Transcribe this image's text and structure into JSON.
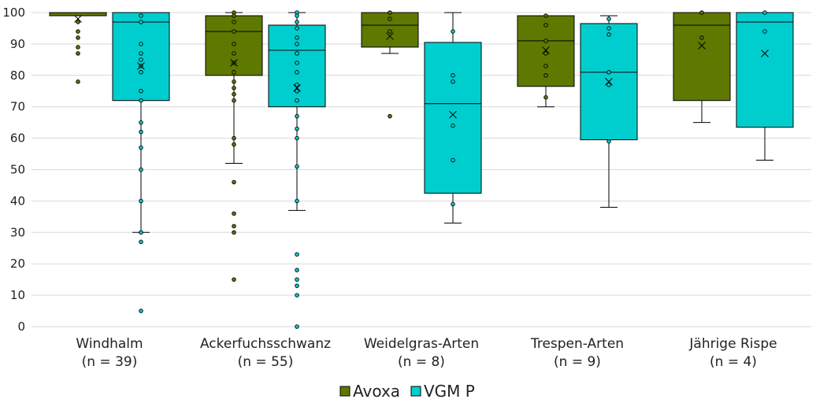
{
  "chart_data": {
    "type": "box",
    "title": "",
    "xlabel": "",
    "ylabel": "",
    "ylim": [
      0,
      100
    ],
    "yticks": [
      0,
      10,
      20,
      30,
      40,
      50,
      60,
      70,
      80,
      90,
      100
    ],
    "grid": true,
    "legend_position": "bottom",
    "categories": [
      {
        "name": "Windhalm",
        "n_label": "(n = 39)"
      },
      {
        "name": "Ackerfuchsschwanz",
        "n_label": "(n = 55)"
      },
      {
        "name": "Weidelgras-Arten",
        "n_label": "(n = 8)"
      },
      {
        "name": "Trespen-Arten",
        "n_label": "(n = 9)"
      },
      {
        "name": "Jährige Rispe",
        "n_label": "(n = 4)"
      }
    ],
    "series": [
      {
        "name": "Avoxa",
        "color": "#5f7800",
        "boxes": [
          {
            "q1": 99,
            "median": 100,
            "q3": 100,
            "whisker_low": 99,
            "whisker_high": 100,
            "mean": 98,
            "outliers": [
              97,
              94,
              92,
              89,
              87,
              78
            ]
          },
          {
            "q1": 80,
            "median": 94,
            "q3": 99,
            "whisker_low": 52,
            "whisker_high": 100,
            "mean": 84,
            "outliers": [
              100,
              99,
              97,
              94,
              90,
              87,
              84,
              81,
              78,
              76,
              74,
              72,
              60,
              58,
              46,
              36,
              32,
              30,
              15
            ]
          },
          {
            "q1": 89,
            "median": 96,
            "q3": 100,
            "whisker_low": 87,
            "whisker_high": 100,
            "mean": 92.5,
            "outliers": [
              100,
              98,
              94,
              67
            ]
          },
          {
            "q1": 76.5,
            "median": 91,
            "q3": 99,
            "whisker_low": 70,
            "whisker_high": 99,
            "mean": 88,
            "outliers": [
              99,
              96,
              91,
              87,
              83,
              80,
              73
            ]
          },
          {
            "q1": 72,
            "median": 96,
            "q3": 100,
            "whisker_low": 65,
            "whisker_high": 100,
            "mean": 89.5,
            "outliers": [
              100,
              92
            ]
          }
        ]
      },
      {
        "name": "VGM P",
        "color": "#00cece",
        "boxes": [
          {
            "q1": 72,
            "median": 97,
            "q3": 100,
            "whisker_low": 30,
            "whisker_high": 100,
            "mean": 83,
            "outliers": [
              99,
              97,
              90,
              87,
              85,
              83,
              81,
              75,
              72,
              65,
              62,
              57,
              50,
              40,
              30,
              27,
              5
            ]
          },
          {
            "q1": 70,
            "median": 88,
            "q3": 96,
            "whisker_low": 37,
            "whisker_high": 100,
            "mean": 76,
            "outliers": [
              100,
              99,
              97,
              95,
              92,
              90,
              87,
              84,
              81,
              77,
              75,
              72,
              67,
              63,
              60,
              51,
              40,
              23,
              18,
              15,
              13,
              10,
              0
            ]
          },
          {
            "q1": 42.5,
            "median": 71,
            "q3": 90.5,
            "whisker_low": 33,
            "whisker_high": 100,
            "mean": 67.5,
            "outliers": [
              94,
              80,
              78,
              64,
              53,
              39
            ]
          },
          {
            "q1": 59.5,
            "median": 81,
            "q3": 96.5,
            "whisker_low": 38,
            "whisker_high": 99,
            "mean": 78,
            "outliers": [
              98,
              95,
              93,
              81,
              77,
              59
            ]
          },
          {
            "q1": 63.5,
            "median": 97,
            "q3": 100,
            "whisker_low": 53,
            "whisker_high": 100,
            "mean": 87,
            "outliers": [
              100,
              94
            ]
          }
        ]
      }
    ]
  }
}
